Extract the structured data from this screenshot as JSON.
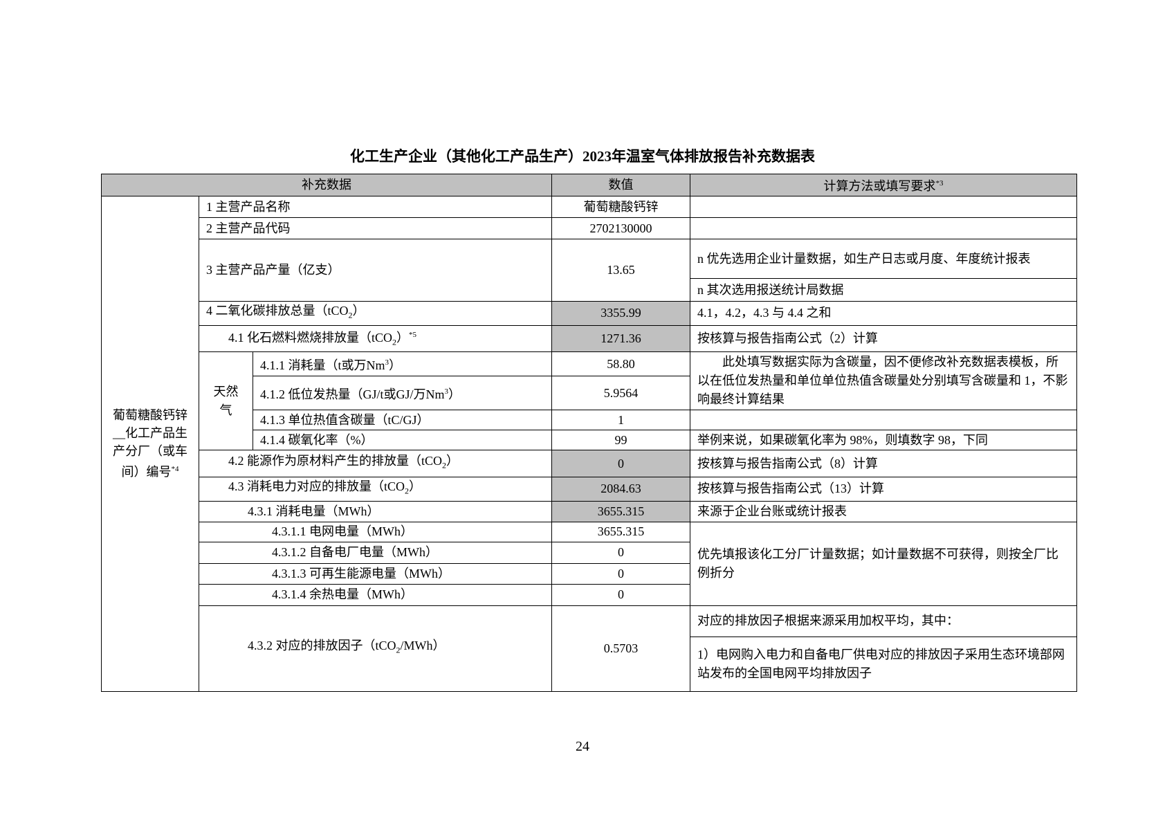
{
  "title": "化工生产企业（其他化工产品生产）2023年温室气体排放报告补充数据表",
  "headers": {
    "col1": "补充数据",
    "col2": "数值",
    "col3": "计算方法或填写要求",
    "col3_sup": "*3"
  },
  "left_label": "葡萄糖酸钙锌__化工产品生产分厂（或车间）编号",
  "left_label_sup": "*4",
  "gas_label": "天然气",
  "rows": {
    "r1": {
      "label": "1  主营产品名称",
      "value": "葡萄糖酸钙锌"
    },
    "r2": {
      "label": "2   主营产品代码",
      "value": "2702130000"
    },
    "r3": {
      "label": "3  主营产品产量（亿支）",
      "value": "13.65",
      "note_a": "n  优先选用企业计量数据，如生产日志或月度、年度统计报表",
      "note_b": "n  其次选用报送统计局数据"
    },
    "r4": {
      "label_pre": "4  二氧化碳排放总量（tCO",
      "label_post": "）",
      "value": "3355.99",
      "note": "4.1，4.2，4.3 与 4.4 之和"
    },
    "r41": {
      "label_pre": "4.1  化石燃料燃烧排放量（tCO",
      "label_post": "）",
      "sup": "*5",
      "value": "1271.36",
      "note": "按核算与报告指南公式（2）计算"
    },
    "r411": {
      "label_pre": "4.1.1  消耗量（t或万Nm",
      "label_post": "）",
      "value": "58.80",
      "note": "此处填写数据实际为含碳量，因不便修改补充数据表模板，所以在低位发热量和单位单位热值含碳量处分别填写含碳量和 1，不影响最终计算结果"
    },
    "r412": {
      "label_pre": "4.1.2  低位发热量（GJ/t或GJ/万Nm",
      "label_post": "）",
      "value": "5.9564"
    },
    "r413": {
      "label": "4.1.3  单位热值含碳量（tC/GJ）",
      "value": "1",
      "note": ""
    },
    "r414": {
      "label": "4.1.4  碳氧化率（%）",
      "value": "99",
      "note": "举例来说，如果碳氧化率为 98%，则填数字 98，下同"
    },
    "r42": {
      "label_pre": "4.2  能源作为原材料产生的排放量（tCO",
      "label_post": "）",
      "value": "0",
      "note": "按核算与报告指南公式（8）计算"
    },
    "r43": {
      "label_pre": "4.3   消耗电力对应的排放量（tCO",
      "label_post": "）",
      "value": "2084.63",
      "note": "按核算与报告指南公式（13）计算"
    },
    "r431": {
      "label": "4.3.1  消耗电量（MWh）",
      "value": "3655.315",
      "note": "来源于企业台账或统计报表"
    },
    "r4311": {
      "label": "4.3.1.1  电网电量（MWh）",
      "value": "3655.315",
      "note": "优先填报该化工分厂计量数据；如计量数据不可获得，则按全厂比例折分"
    },
    "r4312": {
      "label": "4.3.1.2  自备电厂电量（MWh）",
      "value": "0"
    },
    "r4313": {
      "label": "4.3.1.3  可再生能源电量（MWh）",
      "value": "0"
    },
    "r4314": {
      "label": "4.3.1.4  余热电量（MWh）",
      "value": "0"
    },
    "r432": {
      "label_pre": "4.3.2  对应的排放因子（tCO",
      "label_post": "/MWh）",
      "value": "0.5703",
      "note_a": "对应的排放因子根据来源采用加权平均，其中：",
      "note_b": "1）电网购入电力和自备电厂供电对应的排放因子采用生态环境部网站发布的全国电网平均排放因子"
    }
  },
  "subscript_2": "2",
  "superscript_3": "3",
  "page_number": "24",
  "colors": {
    "header_fill": "#c0c0c0",
    "highlight_fill": "#c0c0c0"
  }
}
